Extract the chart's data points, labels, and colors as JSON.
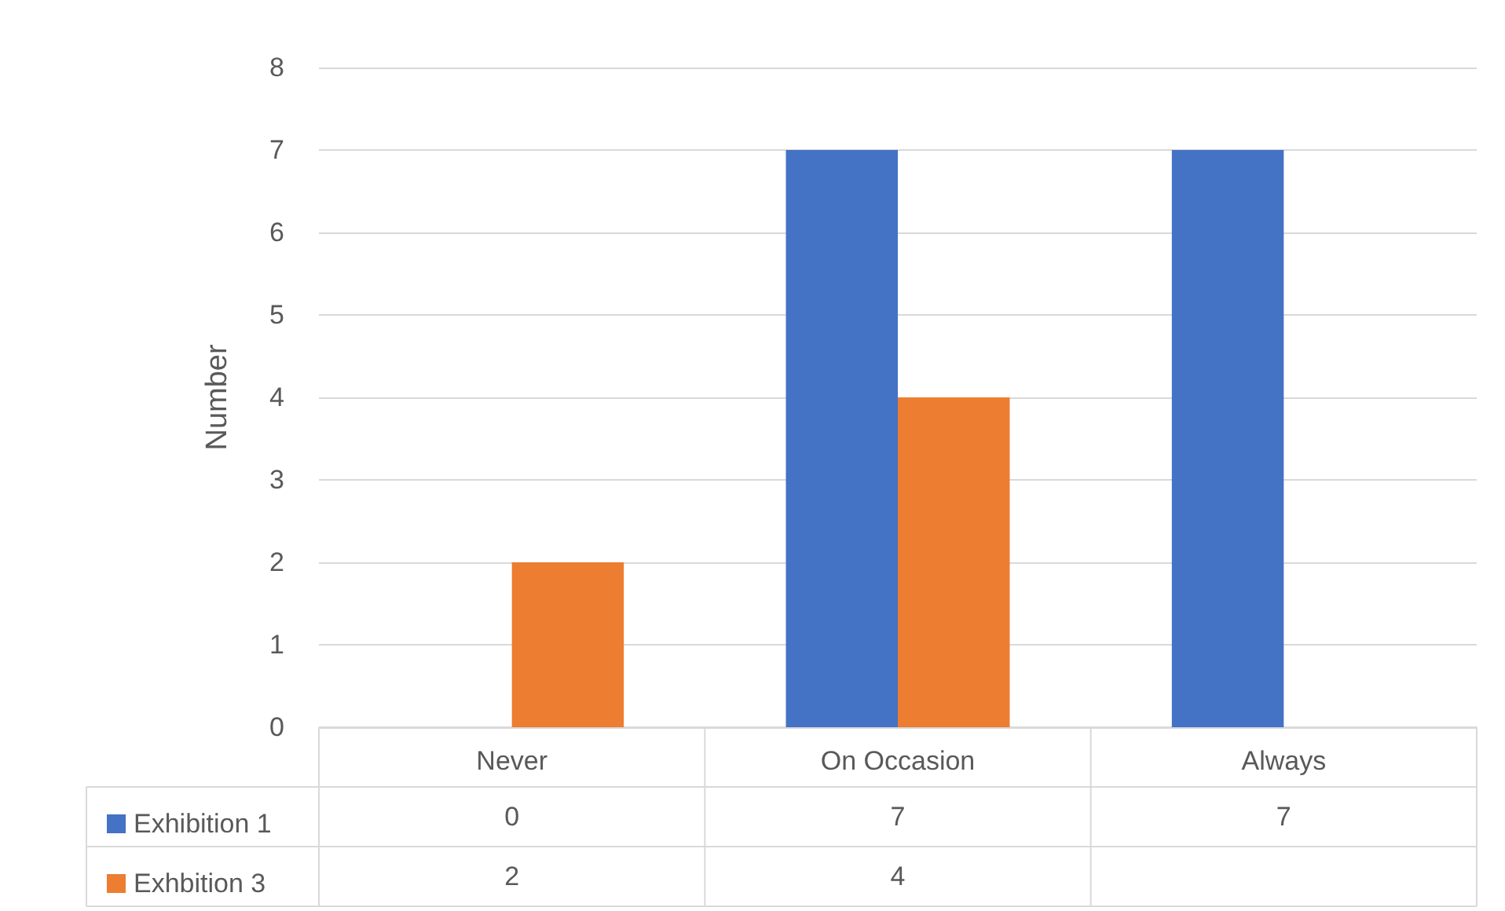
{
  "chart_data": {
    "type": "bar",
    "ylabel": "Number",
    "categories": [
      "Never",
      "On Occasion",
      "Always"
    ],
    "series": [
      {
        "name": "Exhibition 1",
        "color": "#4472c4",
        "values": [
          0,
          7,
          7
        ]
      },
      {
        "name": "Exhbition 3",
        "color": "#ed7d31",
        "values": [
          2,
          4,
          null
        ]
      }
    ],
    "ylim": [
      0,
      8
    ],
    "yticks": [
      0,
      1,
      2,
      3,
      4,
      5,
      6,
      7,
      8
    ],
    "grid": "y",
    "legend": "bottom left",
    "data_labels": true
  }
}
